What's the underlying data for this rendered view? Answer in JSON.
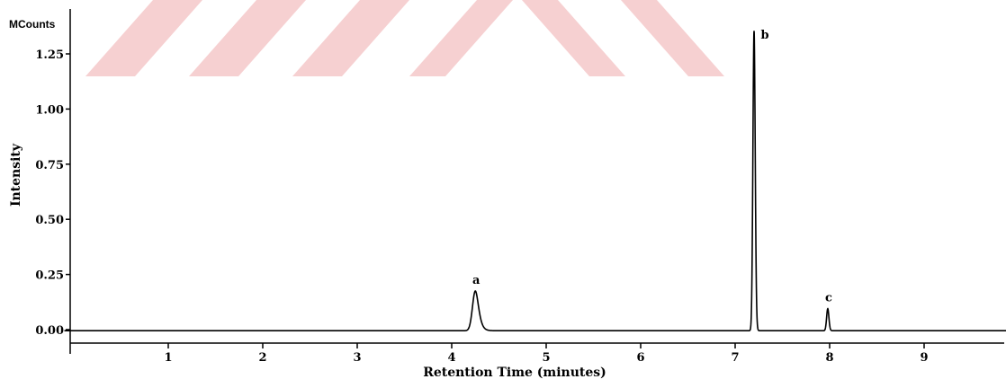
{
  "chart_data": {
    "type": "line",
    "title": "",
    "xlabel": "Retention Time (minutes)",
    "ylabel": "Intensity",
    "y_unit": "MCounts",
    "xlim": [
      0,
      10
    ],
    "ylim": [
      -0.07,
      1.37
    ],
    "grid": false,
    "x_ticks": [
      1,
      2,
      3,
      4,
      5,
      6,
      7,
      8,
      9
    ],
    "x_tick_labels": [
      "1",
      "2",
      "3",
      "4",
      "5",
      "6",
      "7",
      "8",
      "9"
    ],
    "y_ticks": [
      0.0,
      0.25,
      0.5,
      0.75,
      1.0,
      1.25
    ],
    "y_tick_labels": [
      "0.00",
      "0.25",
      "0.50",
      "0.75",
      "1.00",
      "1.25"
    ],
    "baseline": -0.005,
    "peaks": [
      {
        "label": "a",
        "x": 4.25,
        "height": 0.18,
        "width": 0.03,
        "tail": 0.12
      },
      {
        "label": "b",
        "x": 7.2,
        "height": 1.36,
        "width": 0.012,
        "tail": 0.02
      },
      {
        "label": "c",
        "x": 7.98,
        "height": 0.1,
        "width": 0.012,
        "tail": 0.02
      }
    ]
  },
  "watermark": {
    "color": "#f4c4c6"
  }
}
